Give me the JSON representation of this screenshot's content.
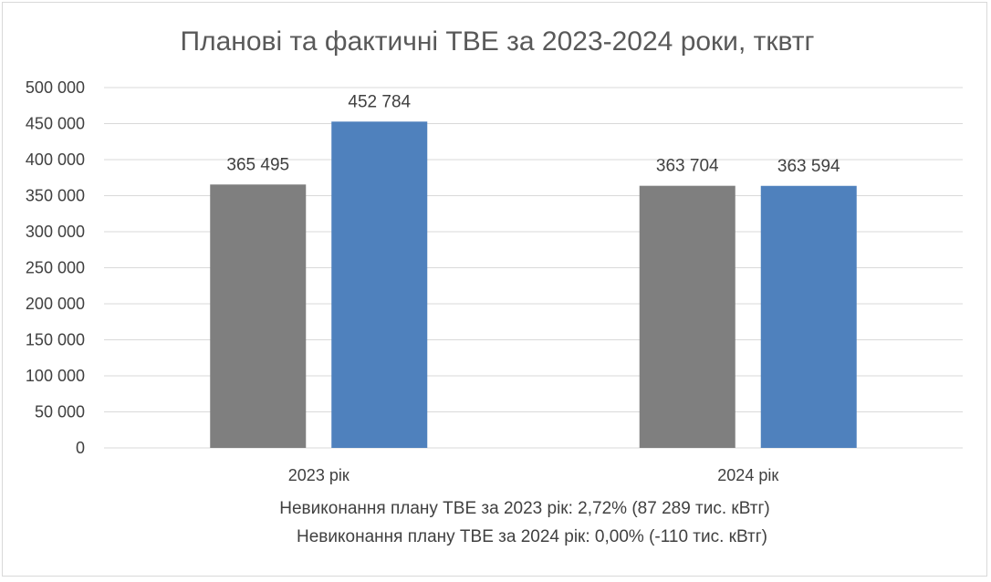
{
  "chart_data": {
    "type": "bar",
    "title": "Планові та фактичні ТВЕ за 2023-2024 роки, тквтг",
    "categories": [
      "2023 рік",
      "2024 рік"
    ],
    "series": [
      {
        "values": [
          365495,
          363704
        ],
        "labels": [
          "365 495",
          "363 704"
        ]
      },
      {
        "values": [
          452784,
          363594
        ],
        "labels": [
          "452 784",
          "363 594"
        ]
      }
    ],
    "ylim": [
      0,
      500000
    ],
    "yticks": [
      {
        "value": 0,
        "label": "0"
      },
      {
        "value": 50000,
        "label": "50 000"
      },
      {
        "value": 100000,
        "label": "100 000"
      },
      {
        "value": 150000,
        "label": "150 000"
      },
      {
        "value": 200000,
        "label": "200 000"
      },
      {
        "value": 250000,
        "label": "250 000"
      },
      {
        "value": 300000,
        "label": "300 000"
      },
      {
        "value": 350000,
        "label": "350 000"
      },
      {
        "value": 400000,
        "label": "400 000"
      },
      {
        "value": 450000,
        "label": "450 000"
      },
      {
        "value": 500000,
        "label": "500 000"
      }
    ],
    "grid": true,
    "notes": [
      "Невиконання плану ТВЕ за 2023 рік: 2,72% (87 289 тис. кВтг)",
      "Невиконання плану ТВЕ за 2024 рік: 0,00% (-110 тис. кВтг)"
    ]
  },
  "colors": {
    "series": [
      "#7f7f7f",
      "#4f81bd"
    ],
    "grid": "#d9d9d9",
    "text": "#404040",
    "title": "#595959"
  }
}
